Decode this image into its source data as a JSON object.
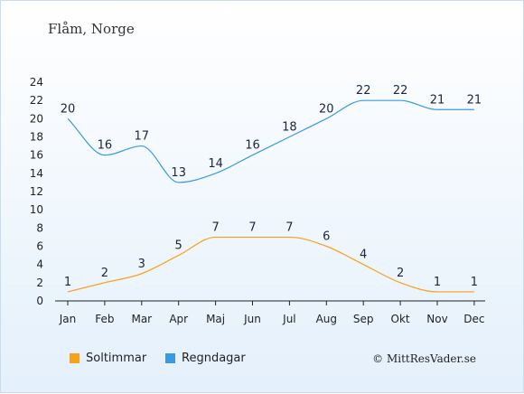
{
  "title": "Flåm, Norge",
  "copyright": "© MittResVader.se",
  "colors": {
    "sun": "#f7a21b",
    "rain": "#3a9ae0"
  },
  "chart_data": {
    "type": "line",
    "categories": [
      "Jan",
      "Feb",
      "Mar",
      "Apr",
      "Maj",
      "Jun",
      "Jul",
      "Aug",
      "Sep",
      "Okt",
      "Nov",
      "Dec"
    ],
    "ylim": [
      0,
      24
    ],
    "yticks": [
      0,
      2,
      4,
      6,
      8,
      10,
      12,
      14,
      16,
      18,
      20,
      22,
      24
    ],
    "grid": false,
    "legend_position": "bottom-left",
    "series": [
      {
        "name": "Soltimmar",
        "color": "#f7a21b",
        "values": [
          1,
          2,
          3,
          5,
          7,
          7,
          7,
          6,
          4,
          2,
          1,
          1
        ]
      },
      {
        "name": "Regndagar",
        "color": "#3a9ae0",
        "values": [
          20,
          16,
          17,
          13,
          14,
          16,
          18,
          20,
          22,
          22,
          21,
          21
        ]
      }
    ]
  }
}
